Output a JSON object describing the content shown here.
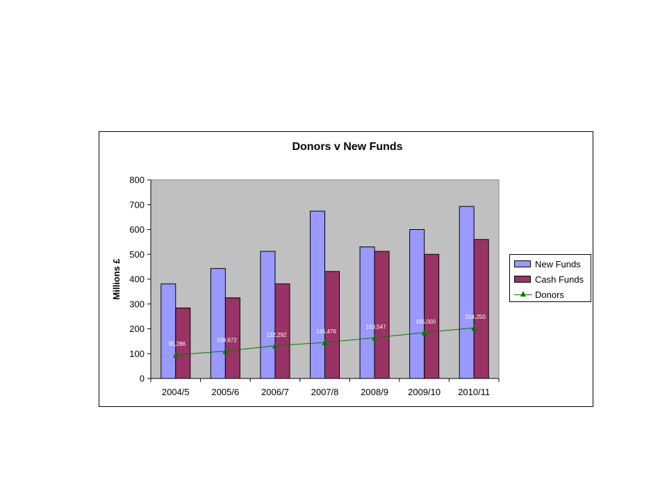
{
  "chart_data": {
    "type": "bar",
    "title": "Donors v New Funds",
    "ylabel": "Millions £",
    "xlabel": "",
    "ylim": [
      0,
      800
    ],
    "yticks": [
      "0",
      "100",
      "200",
      "300",
      "400",
      "500",
      "600",
      "700",
      "800"
    ],
    "categories": [
      "2004/5",
      "2005/6",
      "2006/7",
      "2007/8",
      "2008/9",
      "2009/10",
      "2010/11"
    ],
    "series": [
      {
        "name": "New Funds",
        "kind": "bar",
        "color": "#9999ff",
        "values": [
          381,
          443,
          512,
          674,
          530,
          600,
          693
        ]
      },
      {
        "name": "Cash Funds",
        "kind": "bar",
        "color": "#993366",
        "values": [
          284,
          325,
          381,
          431,
          512,
          500,
          560
        ]
      },
      {
        "name": "Donors",
        "kind": "line",
        "color": "#007700",
        "values": [
          95,
          110,
          132,
          145,
          164,
          185,
          204
        ],
        "labels": [
          "95,286",
          "109,672",
          "132,292",
          "145,476",
          "163,547",
          "185,000",
          "204,250"
        ]
      }
    ],
    "grid": false,
    "plot_background": "#c0c0c0",
    "legend_position": "right"
  }
}
